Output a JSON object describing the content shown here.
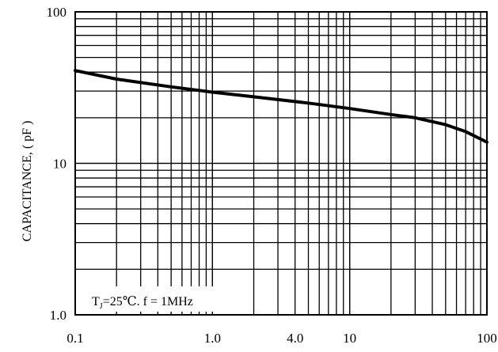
{
  "chart_data": {
    "type": "line",
    "title": "",
    "xlabel": "",
    "ylabel": "CAPACITANCE, ( pF )",
    "x_scale": "log",
    "y_scale": "log",
    "xlim": [
      0.1,
      100
    ],
    "ylim": [
      1.0,
      100
    ],
    "grid": true,
    "x_ticks": [
      {
        "value": 0.1,
        "label": "0.1"
      },
      {
        "value": 1.0,
        "label": "1.0"
      },
      {
        "value": 4.0,
        "label": "4.0"
      },
      {
        "value": 10,
        "label": "10"
      },
      {
        "value": 100,
        "label": "100"
      }
    ],
    "y_ticks": [
      {
        "value": 1.0,
        "label": "1.0"
      },
      {
        "value": 10,
        "label": "10"
      },
      {
        "value": 100,
        "label": "100"
      }
    ],
    "series": [
      {
        "color": "#000000",
        "points": [
          {
            "x": 0.1,
            "y": 41
          },
          {
            "x": 0.2,
            "y": 36
          },
          {
            "x": 0.5,
            "y": 32
          },
          {
            "x": 1.0,
            "y": 29.5
          },
          {
            "x": 2.0,
            "y": 27.5
          },
          {
            "x": 5.0,
            "y": 25
          },
          {
            "x": 10,
            "y": 23
          },
          {
            "x": 20,
            "y": 21
          },
          {
            "x": 30,
            "y": 20
          },
          {
            "x": 50,
            "y": 18
          },
          {
            "x": 70,
            "y": 16.2
          },
          {
            "x": 100,
            "y": 13.8
          }
        ]
      }
    ],
    "annotation": {
      "prefix": "T",
      "subscript": "J",
      "suffix": "=25℃. f = 1MHz"
    }
  }
}
